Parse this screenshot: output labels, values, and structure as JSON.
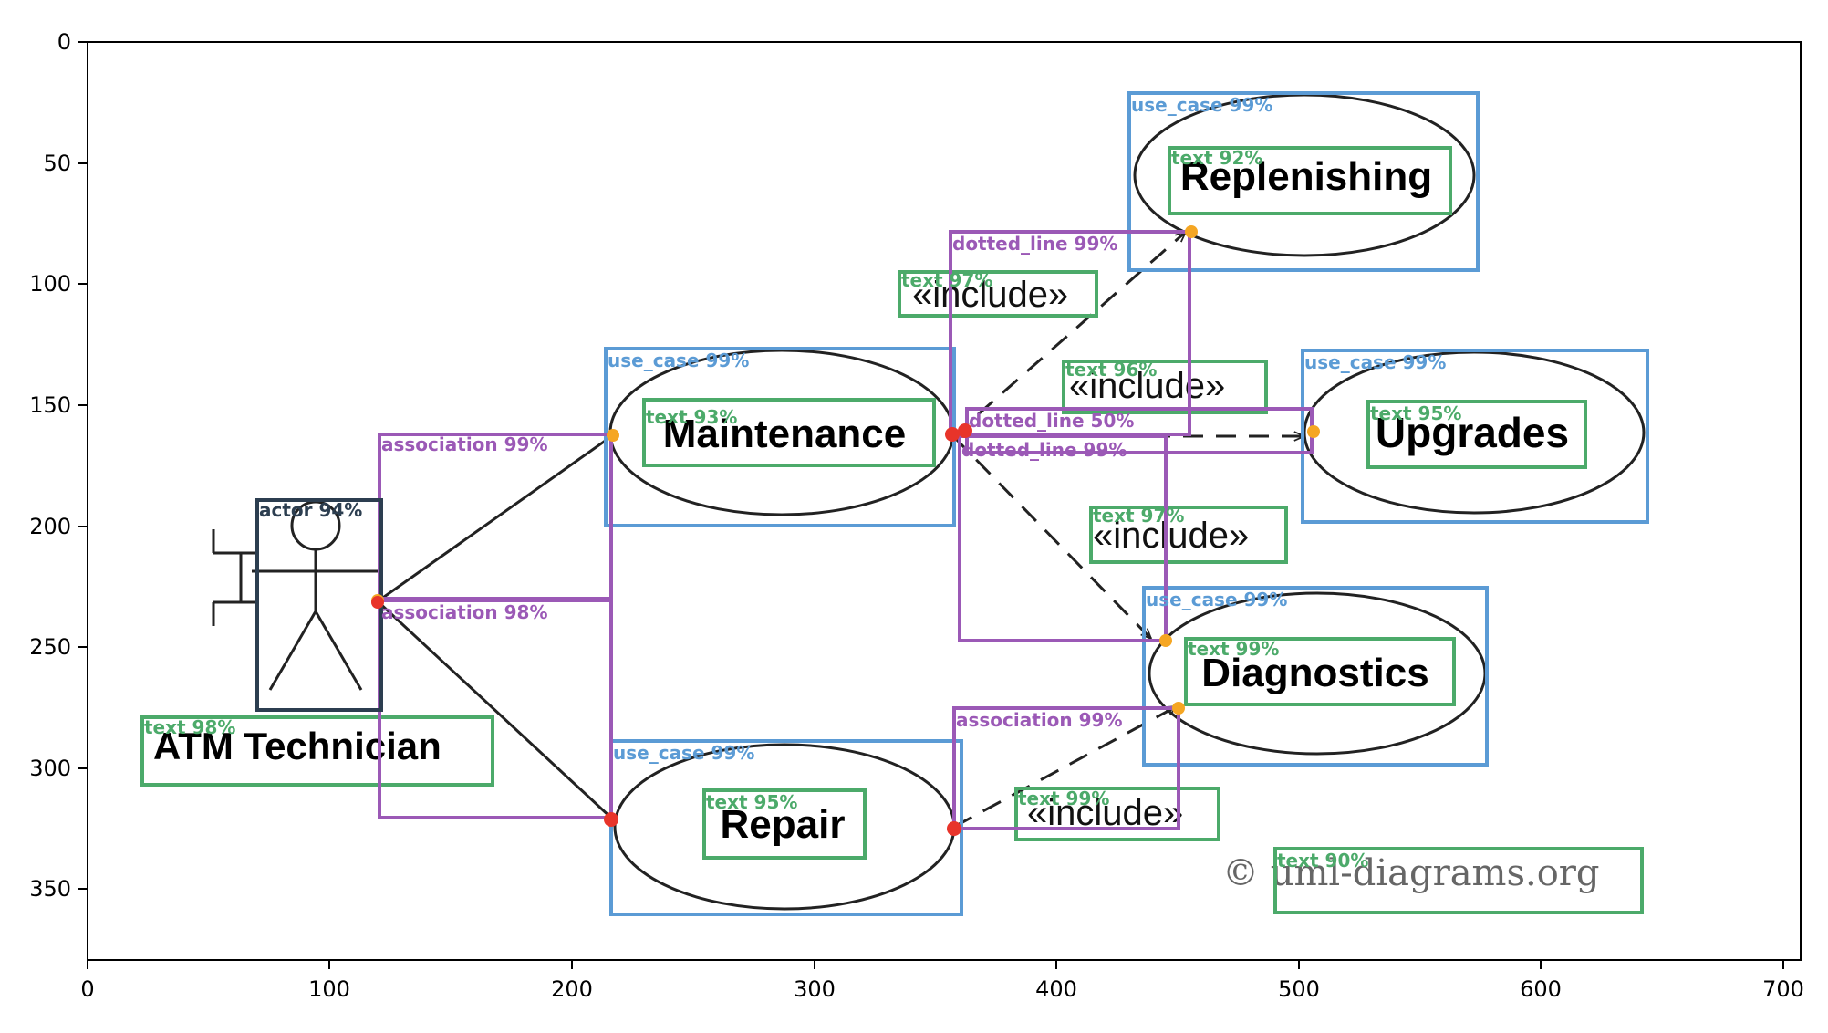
{
  "figure": {
    "x_ticks": [
      "0",
      "100",
      "200",
      "300",
      "400",
      "500",
      "600",
      "700"
    ],
    "y_ticks": [
      "0",
      "50",
      "100",
      "150",
      "200",
      "250",
      "300",
      "350"
    ]
  },
  "diagram": {
    "actor_name": "ATM Technician",
    "use_cases": {
      "replenishing": "Replenishing",
      "maintenance": "Maintenance",
      "upgrades": "Upgrades",
      "diagnostics": "Diagnostics",
      "repair": "Repair"
    },
    "include_label": "«include»",
    "copyright": "© uml-diagrams.org"
  },
  "detections": {
    "colors": {
      "use_case": "#5b9bd5",
      "text": "#4caa6a",
      "association": "#9b59b6",
      "actor": "#2c3e50",
      "point_orange": "#f5a623",
      "point_red": "#e8342a"
    },
    "labels": {
      "uc_replenishing": "use_case 99%",
      "uc_maintenance": "use_case 99%",
      "uc_upgrades": "use_case 99%",
      "uc_diagnostics": "use_case 99%",
      "uc_repair": "use_case 99%",
      "txt_replenishing": "text 92%",
      "txt_maintenance": "text 93%",
      "txt_upgrades": "text 95%",
      "txt_diagnostics": "text 99%",
      "txt_repair": "text 95%",
      "txt_atm": "text 98%",
      "txt_copyright": "text 90%",
      "txt_inc1": "text 97%",
      "txt_inc2": "text 96%",
      "txt_inc3": "text 97%",
      "txt_inc4": "text 99%",
      "dl_1": "dotted_line 99%",
      "dl_2": "dotted_line 50%",
      "dl_3": "dotted_line 99%",
      "as_1": "association 99%",
      "as_2": "association 98%",
      "as_3": "association 99%",
      "actor": "actor 94%"
    }
  }
}
